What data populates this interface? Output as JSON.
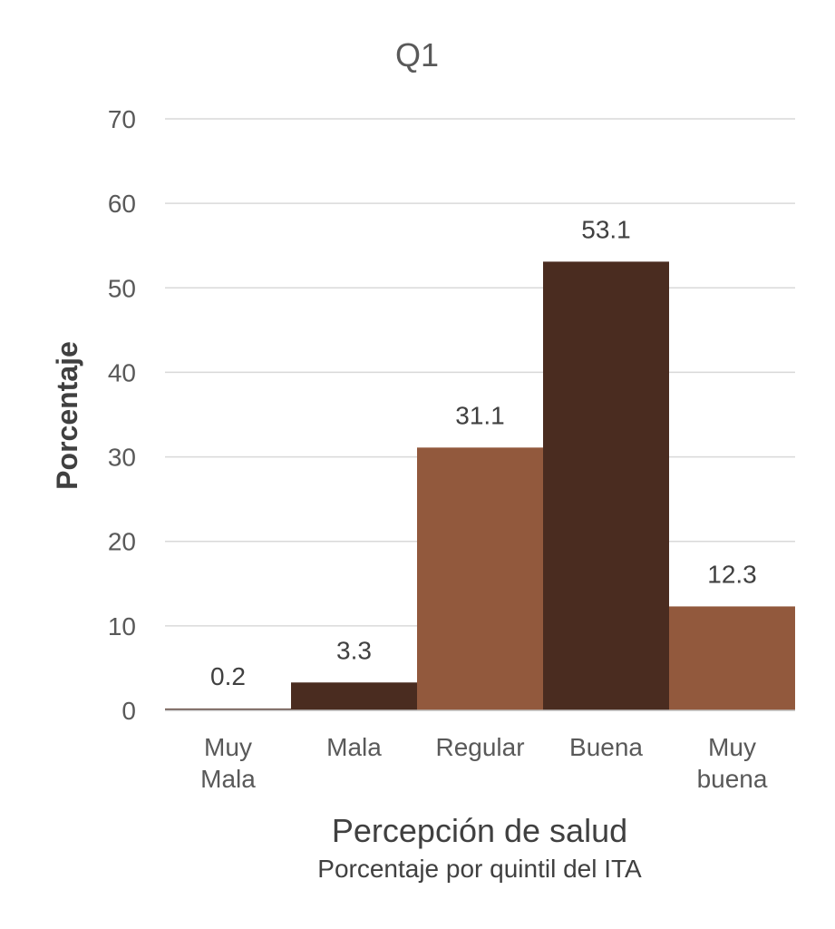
{
  "chart_data": {
    "type": "bar",
    "title": "Q1",
    "ylabel": "Porcentaje",
    "xlabel": "Percepción de salud",
    "subtitle": "Porcentaje por quintil del ITA",
    "categories": [
      [
        "Muy",
        "Mala"
      ],
      [
        "Mala"
      ],
      [
        "Regular"
      ],
      [
        "Buena"
      ],
      [
        "Muy",
        "buena"
      ]
    ],
    "values": [
      0.2,
      3.3,
      31.1,
      53.1,
      12.3
    ],
    "data_labels": [
      "0.2",
      "3.3",
      "31.1",
      "53.1",
      "12.3"
    ],
    "bar_colors": [
      "#4a2c20",
      "#4a2c20",
      "#92593d",
      "#4a2c20",
      "#92593d"
    ],
    "ylim": [
      0,
      70
    ],
    "yticks": [
      0,
      10,
      20,
      30,
      40,
      50,
      60,
      70
    ],
    "grid": true,
    "legend": "none"
  }
}
